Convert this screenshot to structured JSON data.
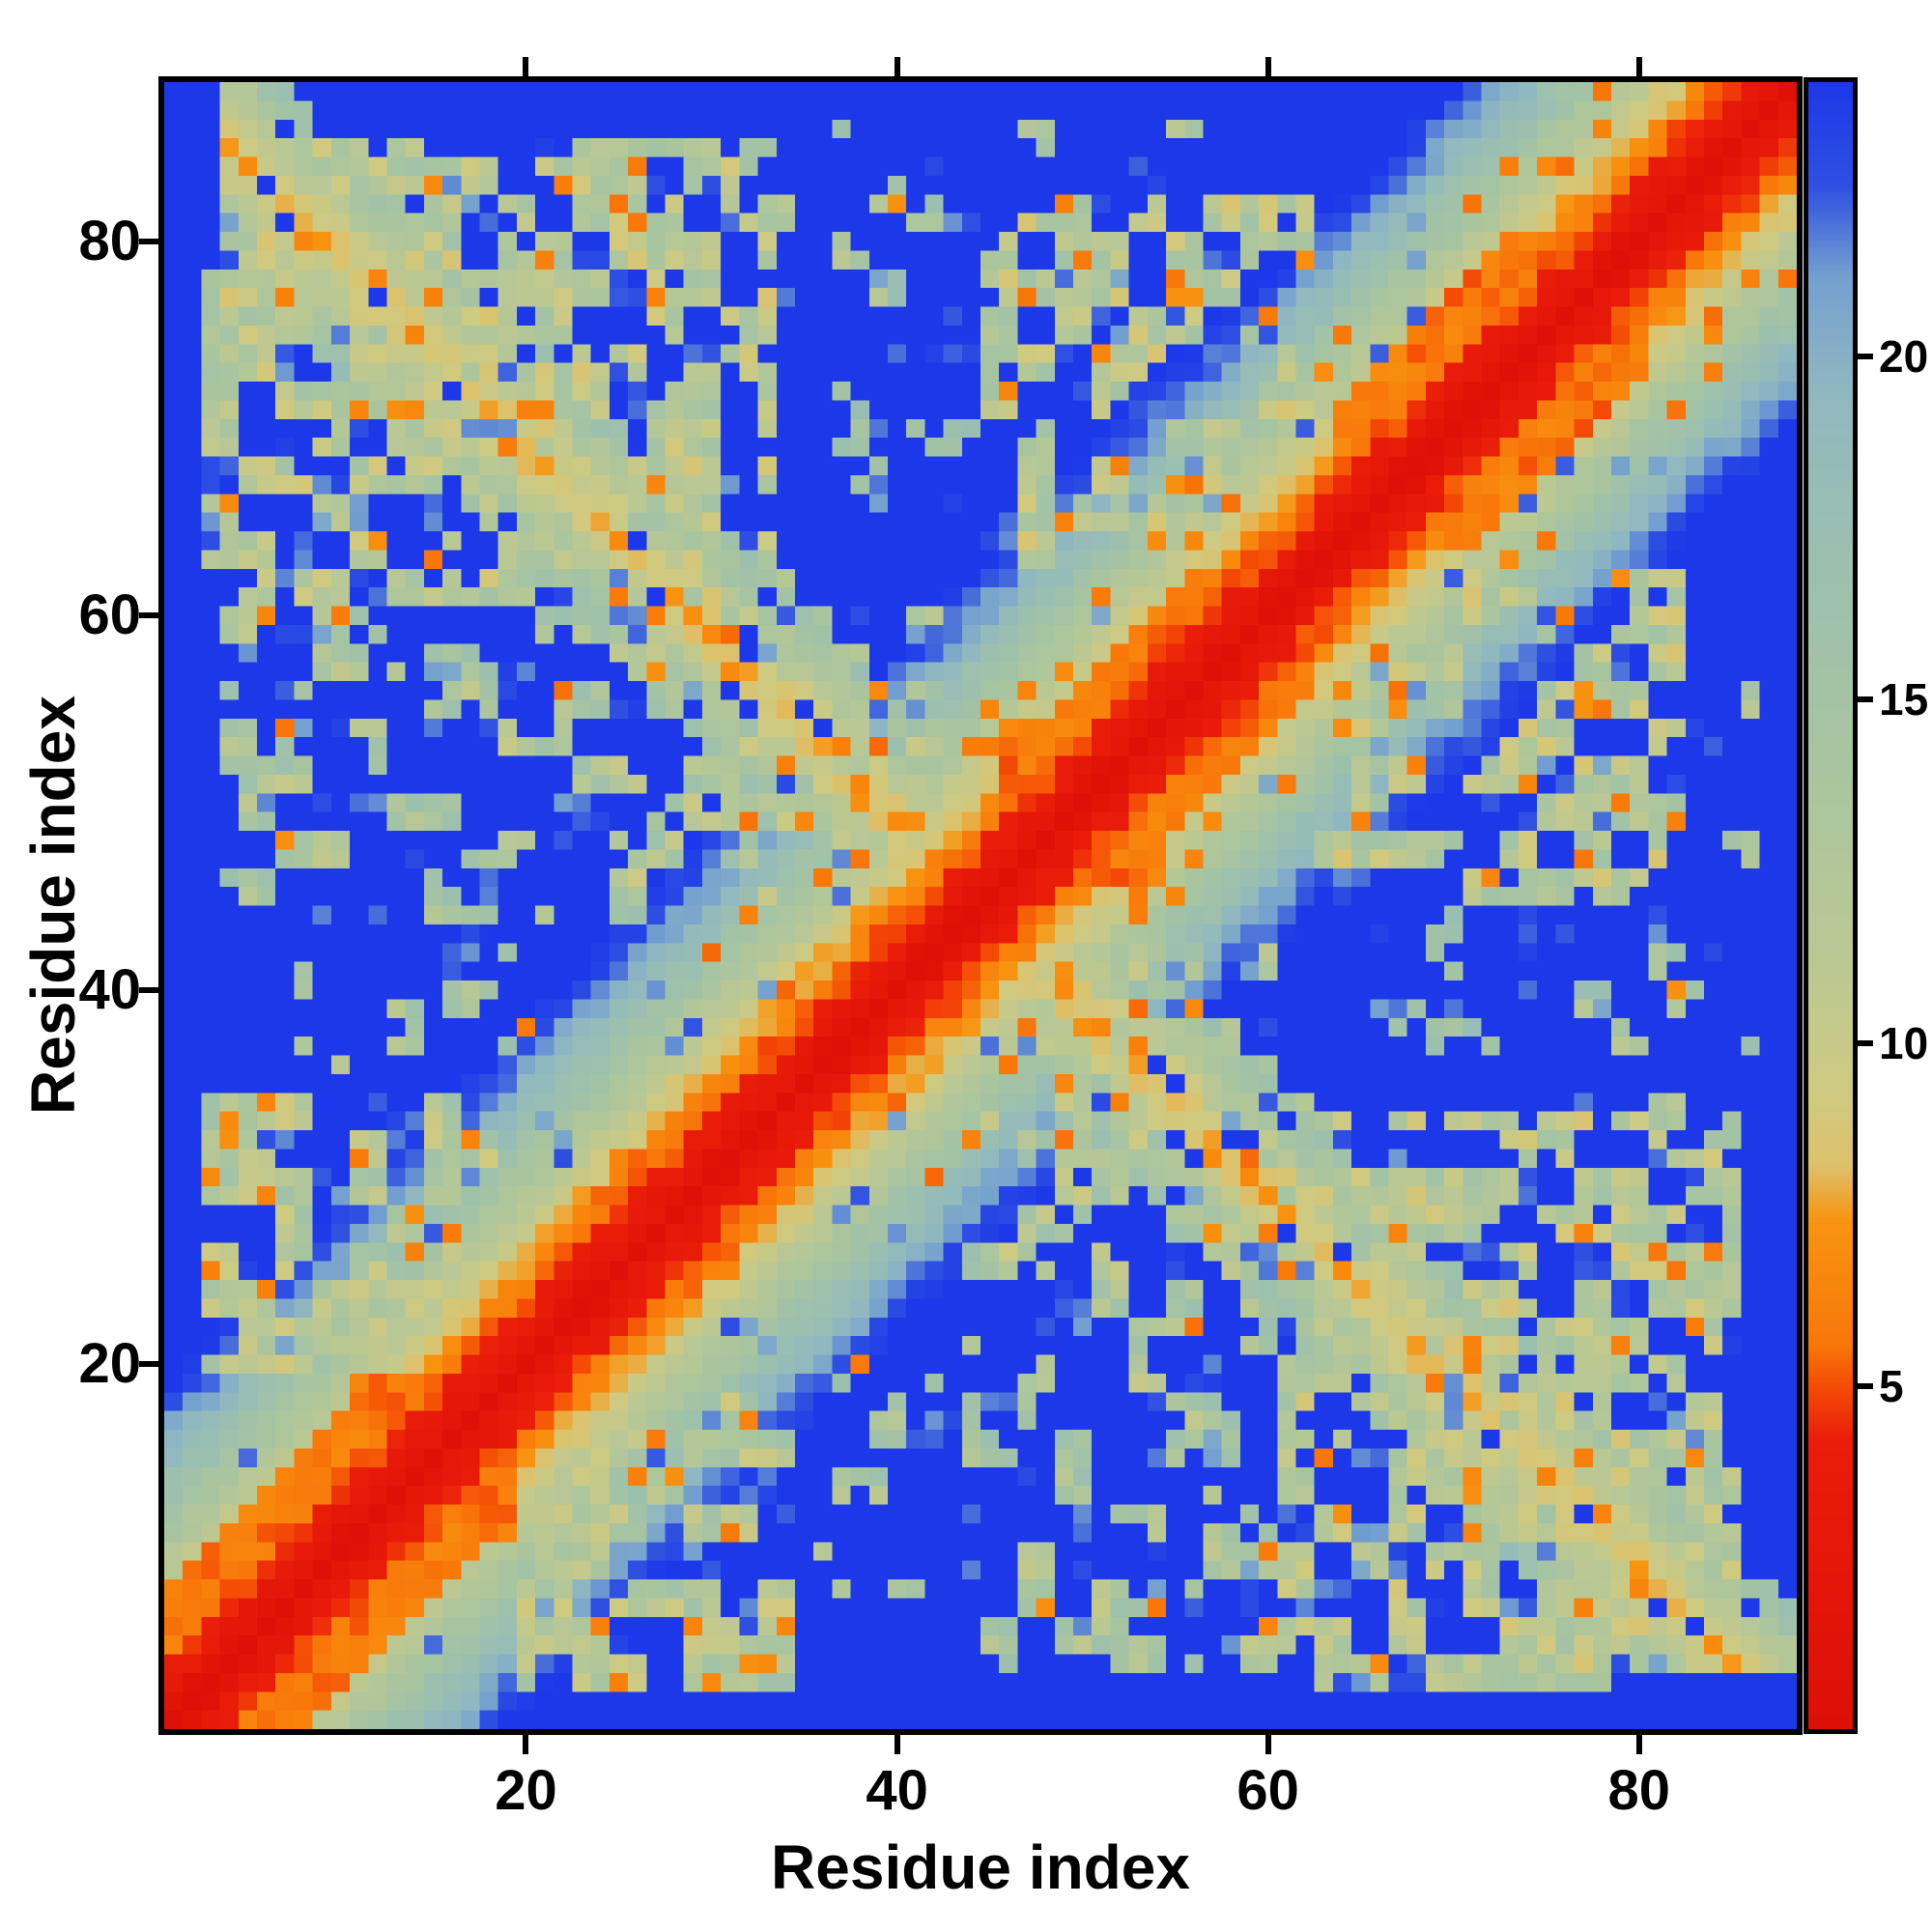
{
  "figure": {
    "background": "#ffffff",
    "frame_color": "#000000",
    "tick_color": "#000000",
    "text_color": "#000000"
  },
  "chart_data": {
    "type": "heatmap",
    "title": "",
    "xlabel": "Residue index",
    "ylabel": "Residue index",
    "n_residues": 88,
    "axis_range": [
      1,
      88
    ],
    "x_ticks": [
      20,
      40,
      60,
      80
    ],
    "y_ticks": [
      20,
      40,
      60,
      80
    ],
    "grid": false,
    "legend_position": "colorbar-right",
    "colorbar": {
      "ticks": [
        5,
        10,
        15,
        20
      ],
      "vmin": 0,
      "vmax": 24,
      "orientation": "vertical"
    },
    "value_meaning": "inter-residue distance / contact map; red = close contact (diagonal), orange = near contacts, green = medium distance, blue = far (capped)",
    "colormap_stops": [
      [
        0,
        "#dd0f07"
      ],
      [
        4.2,
        "#ea1d0a"
      ],
      [
        5.0,
        "#f44d06"
      ],
      [
        5.6,
        "#f8780a"
      ],
      [
        7.4,
        "#f89410"
      ],
      [
        8.2,
        "#ddc16a"
      ],
      [
        9.2,
        "#d0ca80"
      ],
      [
        11,
        "#bcc892"
      ],
      [
        14,
        "#a9c59f"
      ],
      [
        17,
        "#9cc0af"
      ],
      [
        19.5,
        "#90b8c0"
      ],
      [
        21.2,
        "#74a0cf"
      ],
      [
        22.5,
        "#2f50e2"
      ],
      [
        24,
        "#1c38e8"
      ]
    ],
    "matrix_spec": {
      "size": 88,
      "cap": 24,
      "diag_slope": 1.3,
      "diag_offset": 0.5,
      "helix_ranges": [
        [
          1,
          19,
          7
        ],
        [
          23,
          33,
          5
        ],
        [
          46,
          62,
          6
        ],
        [
          64,
          80,
          7
        ]
      ],
      "antidiagonal": {
        "center": 89,
        "halfwidth": 6,
        "i_min": 4,
        "i_max": 44,
        "base": 7.8,
        "slope": 1.5
      },
      "contact_blocks": [
        {
          "x": [
            3,
            33
          ],
          "y": [
            61,
            85
          ],
          "value": 12,
          "density": 0.62
        },
        {
          "x": [
            4,
            34
          ],
          "y": [
            44,
            60
          ],
          "value": 13.5,
          "density": 0.45
        },
        {
          "x": [
            45,
            62
          ],
          "y": [
            63,
            82
          ],
          "value": 12,
          "density": 0.55
        },
        {
          "x": [
            25,
            42
          ],
          "y": [
            45,
            62
          ],
          "value": 13,
          "density": 0.42
        },
        {
          "x": [
            34,
            56
          ],
          "y": [
            66,
            86
          ],
          "value": 14.5,
          "density": 0.25
        },
        {
          "x": [
            8,
            20
          ],
          "y": [
            36,
            48
          ],
          "value": 13.5,
          "density": 0.33
        },
        {
          "x": [
            3,
            18
          ],
          "y": [
            20,
            34
          ],
          "value": 12.5,
          "density": 0.7
        }
      ],
      "orange_speckle_prob": 0.06,
      "blue_speckle_prob": 0.05,
      "seed": 7
    }
  }
}
